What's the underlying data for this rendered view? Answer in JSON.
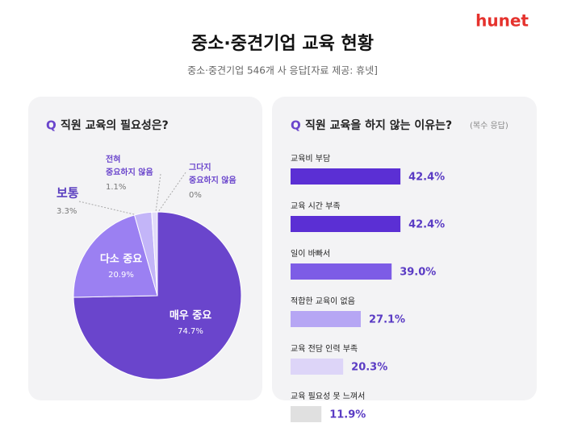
{
  "logo": "hunet",
  "title": "중소·중견기업 교육 현황",
  "subtitle": "중소·중견기업 546개 사 응답[자료 제공: 휴넷]",
  "chart_data": [
    {
      "type": "pie",
      "marker": "Q",
      "title": "직원 교육의 필요성은?",
      "categories": [
        "매우 중요",
        "다소 중요",
        "보통",
        "전혀 중요하지 않음",
        "그다지 중요하지 않음"
      ],
      "values": [
        74.7,
        20.9,
        3.3,
        1.1,
        0
      ],
      "value_labels": [
        "74.7%",
        "20.9%",
        "3.3%",
        "1.1%",
        "0%"
      ],
      "colors": [
        "#6a45cc",
        "#9b80f2",
        "#c3b5f8",
        "#e2dbfa",
        "#f0eef6"
      ]
    },
    {
      "type": "bar",
      "orientation": "horizontal",
      "marker": "Q",
      "title": "직원 교육을 하지 않는 이유는?",
      "subtitle": "(복수 응답)",
      "categories": [
        "교육비 부담",
        "교육 시간 부족",
        "일이 바빠서",
        "적합한 교육이 없음",
        "교육 전담 인력 부족",
        "교육 필요성 못 느껴서"
      ],
      "values": [
        42.4,
        42.4,
        39.0,
        27.1,
        20.3,
        11.9
      ],
      "value_labels": [
        "42.4%",
        "42.4%",
        "39.0%",
        "27.1%",
        "20.3%",
        "11.9%"
      ],
      "colors": [
        "#5b2fd4",
        "#5b2fd4",
        "#7d5ce6",
        "#b6a6f4",
        "#ddd5f8",
        "#e0e0e0"
      ]
    }
  ]
}
